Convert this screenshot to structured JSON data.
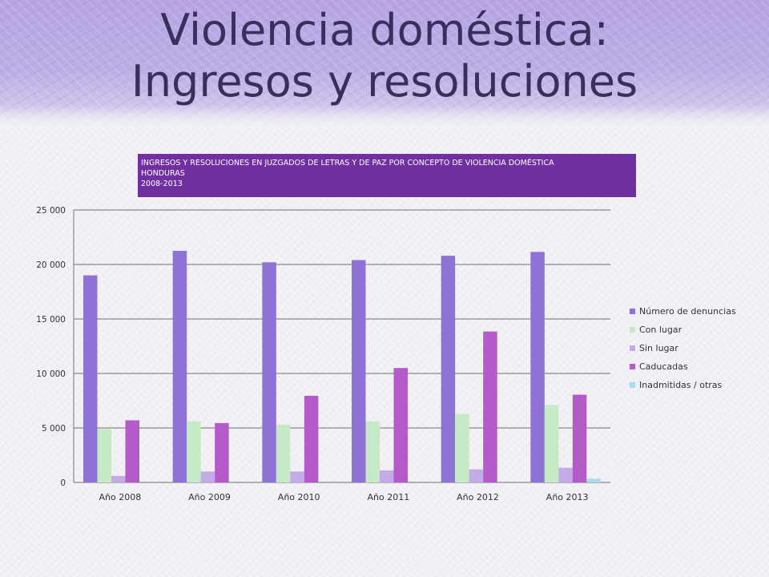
{
  "slide": {
    "title_line1": "Violencia doméstica:",
    "title_line2": "Ingresos y resoluciones"
  },
  "chart_header": {
    "line1": "INGRESOS Y RESOLUCIONES EN JUZGADOS DE LETRAS Y DE PAZ POR CONCEPTO DE VIOLENCIA DOMÉSTICA",
    "line2": "HONDURAS",
    "line3": "2008-2013"
  },
  "colors": {
    "title": "#3a2f5c",
    "header_band": "#b6a4e3",
    "chart_header_bg": "#7030a0"
  },
  "chart_data": {
    "type": "bar",
    "title": "INGRESOS Y RESOLUCIONES EN JUZGADOS DE LETRAS Y DE PAZ POR CONCEPTO DE VIOLENCIA DOMÉSTICA HONDURAS 2008-2013",
    "categories": [
      "Año 2008",
      "Año 2009",
      "Año 2010",
      "Año 2011",
      "Año 2012",
      "Año 2013"
    ],
    "series": [
      {
        "name": "Número de denuncias",
        "color": "#8e72d6",
        "values": [
          19000,
          21250,
          20200,
          20400,
          20800,
          21150
        ]
      },
      {
        "name": "Con lugar",
        "color": "#c6e9c6",
        "values": [
          4900,
          5600,
          5300,
          5600,
          6300,
          7100
        ]
      },
      {
        "name": "Sin lugar",
        "color": "#c3ace6",
        "values": [
          600,
          1000,
          1000,
          1100,
          1200,
          1350
        ]
      },
      {
        "name": "Caducadas",
        "color": "#b45ac9",
        "values": [
          5700,
          5450,
          7950,
          10500,
          13850,
          8050
        ]
      },
      {
        "name": "Inadmitidas / otras",
        "color": "#a9dcec",
        "values": [
          0,
          0,
          0,
          0,
          0,
          350
        ]
      }
    ],
    "ylim": [
      0,
      25000
    ],
    "yticks": [
      0,
      5000,
      10000,
      15000,
      20000,
      25000
    ],
    "ytick_labels": [
      "0",
      "5 000",
      "10 000",
      "15 000",
      "20 000",
      "25 000"
    ],
    "grid": true,
    "legend_position": "right",
    "xlabel": "",
    "ylabel": ""
  }
}
